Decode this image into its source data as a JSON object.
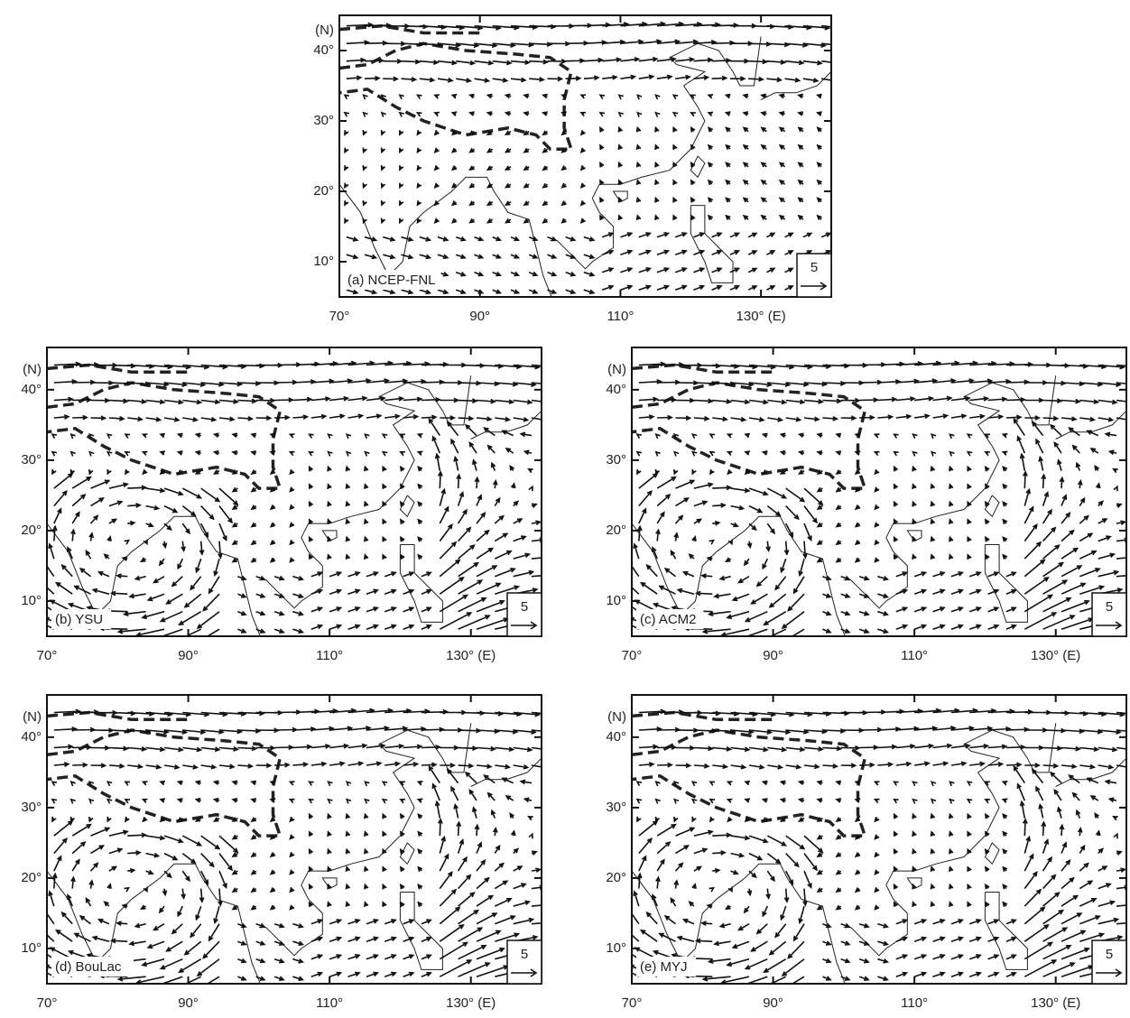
{
  "panels": [
    {
      "label": "(a) NCEP-FNL",
      "xlim": [
        70,
        140
      ],
      "ylim": [
        5,
        45
      ],
      "xticks": [
        {
          "value": 70,
          "label": "70°"
        },
        {
          "value": 90,
          "label": "90°"
        },
        {
          "value": 110,
          "label": "110°"
        },
        {
          "value": 130,
          "label": "130° (E)"
        }
      ],
      "yticks": [
        {
          "value": 10,
          "label": "10°"
        },
        {
          "value": 20,
          "label": "20°"
        },
        {
          "value": 30,
          "label": "30°"
        },
        {
          "value": 40,
          "label": "40°"
        }
      ],
      "y_unit": "(N)",
      "reference_vector": 5
    },
    {
      "label": "(b) YSU",
      "xlim": [
        70,
        140
      ],
      "ylim": [
        5,
        46
      ],
      "xticks": [
        {
          "value": 70,
          "label": "70°"
        },
        {
          "value": 90,
          "label": "90°"
        },
        {
          "value": 110,
          "label": "110°"
        },
        {
          "value": 130,
          "label": "130° (E)"
        }
      ],
      "yticks": [
        {
          "value": 10,
          "label": "10°"
        },
        {
          "value": 20,
          "label": "20°"
        },
        {
          "value": 30,
          "label": "30°"
        },
        {
          "value": 40,
          "label": "40°"
        }
      ],
      "y_unit": "(N)",
      "reference_vector": 5
    },
    {
      "label": "(c) ACM2",
      "xlim": [
        70,
        140
      ],
      "ylim": [
        5,
        46
      ],
      "xticks": [
        {
          "value": 70,
          "label": "70°"
        },
        {
          "value": 90,
          "label": "90°"
        },
        {
          "value": 110,
          "label": "110°"
        },
        {
          "value": 130,
          "label": "130° (E)"
        }
      ],
      "yticks": [
        {
          "value": 10,
          "label": "10°"
        },
        {
          "value": 20,
          "label": "20°"
        },
        {
          "value": 30,
          "label": "30°"
        },
        {
          "value": 40,
          "label": "40°"
        }
      ],
      "y_unit": "(N)",
      "reference_vector": 5
    },
    {
      "label": "(d) BouLac",
      "xlim": [
        70,
        140
      ],
      "ylim": [
        5,
        46
      ],
      "xticks": [
        {
          "value": 70,
          "label": "70°"
        },
        {
          "value": 90,
          "label": "90°"
        },
        {
          "value": 110,
          "label": "110°"
        },
        {
          "value": 130,
          "label": "130° (E)"
        }
      ],
      "yticks": [
        {
          "value": 10,
          "label": "10°"
        },
        {
          "value": 20,
          "label": "20°"
        },
        {
          "value": 30,
          "label": "30°"
        },
        {
          "value": 40,
          "label": "40°"
        }
      ],
      "y_unit": "(N)",
      "reference_vector": 5
    },
    {
      "label": "(e) MYJ",
      "xlim": [
        70,
        140
      ],
      "ylim": [
        5,
        46
      ],
      "xticks": [
        {
          "value": 70,
          "label": "70°"
        },
        {
          "value": 90,
          "label": "90°"
        },
        {
          "value": 110,
          "label": "110°"
        },
        {
          "value": 130,
          "label": "130° (E)"
        }
      ],
      "yticks": [
        {
          "value": 10,
          "label": "10°"
        },
        {
          "value": 20,
          "label": "20°"
        },
        {
          "value": 30,
          "label": "30°"
        },
        {
          "value": 40,
          "label": "40°"
        }
      ],
      "y_unit": "(N)",
      "reference_vector": 5
    }
  ]
}
